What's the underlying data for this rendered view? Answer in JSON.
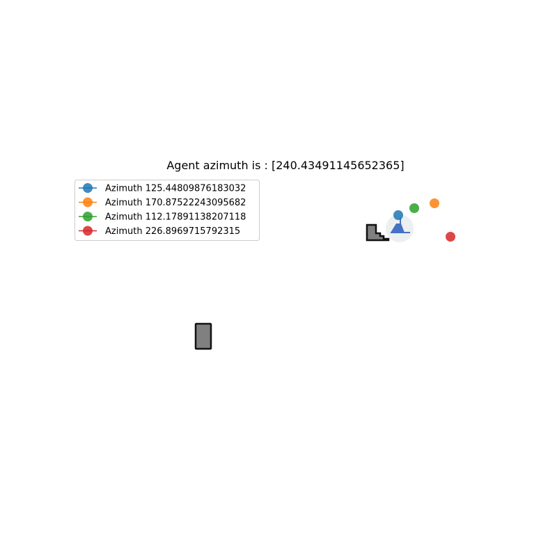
{
  "title": "Agent azimuth is : [240.43491145652365]",
  "legend": {
    "placement": "upper-left",
    "entries": [
      {
        "label": "Azimuth 125.44809876183032",
        "color": "#1f77b4"
      },
      {
        "label": "Azimuth 170.87522243095682",
        "color": "#ff7f0e"
      },
      {
        "label": "Azimuth 112.17891138207118",
        "color": "#2ca02c"
      },
      {
        "label": "Azimuth 226.8969715792315",
        "color": "#d62728"
      }
    ]
  },
  "chart_data": {
    "type": "scatter",
    "title": "Agent azimuth is : [240.43491145652365]",
    "axes_visible": false,
    "grid": false,
    "legend_placement": "upper-left",
    "series": [
      {
        "name": "Azimuth 125.44809876183032",
        "color": "#1f77b4",
        "azimuth": 125.44809876183032
      },
      {
        "name": "Azimuth 170.87522243095682",
        "color": "#ff7f0e",
        "azimuth": 170.87522243095682
      },
      {
        "name": "Azimuth 112.17891138207118",
        "color": "#2ca02c",
        "azimuth": 112.17891138207118
      },
      {
        "name": "Azimuth 226.8969715792315",
        "color": "#d62728",
        "azimuth": 226.8969715792315
      }
    ],
    "agent": {
      "azimuth": 240.43491145652365,
      "icon": "agent-person-icon",
      "color": "#4472c4"
    },
    "obstacles": [
      {
        "icon": "staircase-obstacle-icon",
        "color": "#808080"
      },
      {
        "icon": "box-obstacle-icon",
        "color": "#808080"
      }
    ]
  }
}
